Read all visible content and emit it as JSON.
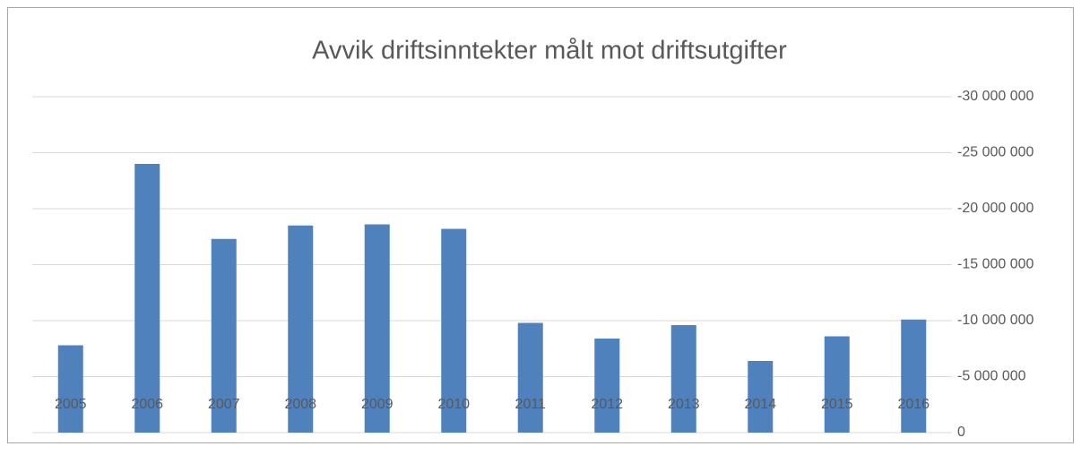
{
  "chart_data": {
    "type": "bar",
    "title": "Avvik driftsinntekter målt mot driftsutgifter",
    "categories": [
      "2005",
      "2006",
      "2007",
      "2008",
      "2009",
      "2010",
      "2011",
      "2012",
      "2013",
      "2014",
      "2015",
      "2016"
    ],
    "values": [
      -7800000,
      -24000000,
      -17300000,
      -18500000,
      -18600000,
      -18200000,
      -9800000,
      -8400000,
      -9600000,
      -6400000,
      -8600000,
      -10100000
    ],
    "color": "#4f81bd",
    "ylim": [
      0,
      -30000000
    ],
    "yticks": [
      0,
      {
        "value": -5000000,
        "label": "-5 000 000"
      },
      {
        "value": -10000000,
        "label": "-10 000 000"
      },
      {
        "value": -15000000,
        "label": "-15 000 000"
      },
      {
        "value": -20000000,
        "label": "-20 000 000"
      },
      {
        "value": -25000000,
        "label": "-25 000 000"
      },
      {
        "value": -30000000,
        "label": "-30 000 000"
      }
    ],
    "grid": true
  }
}
